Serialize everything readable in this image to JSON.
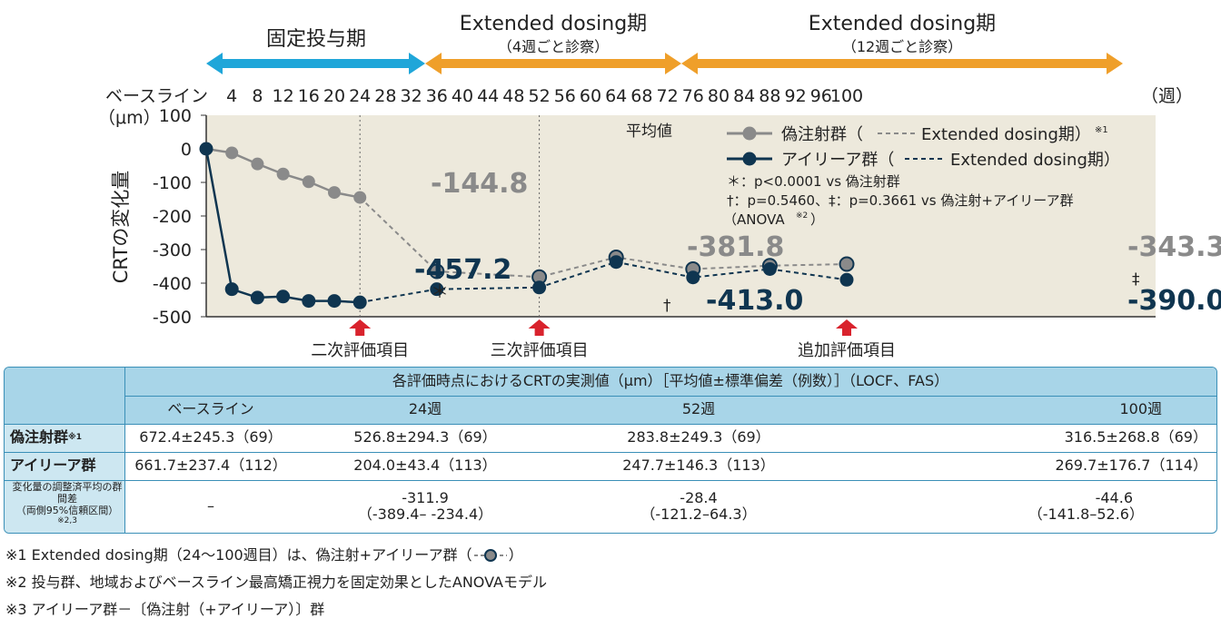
{
  "colors": {
    "sham": "#8a8a8a",
    "aflibercept": "#0f3550",
    "plot_bg": "#ede9dc",
    "phase1": "#1fa6d9",
    "phase2": "#ef9f2a",
    "marker_red": "#d9232d",
    "table_header": "#a8d5e8",
    "table_label": "#cde7f1"
  },
  "periods": [
    {
      "title": "固定投与期",
      "subtitle": ""
    },
    {
      "title": "Extended dosing期",
      "subtitle": "（4週ごと診察）"
    },
    {
      "title": "Extended dosing期",
      "subtitle": "（12週ごと診察）"
    }
  ],
  "eval_markers": [
    "二次評価項目",
    "三次評価項目",
    "追加評価項目"
  ],
  "chart_data": {
    "type": "line",
    "ylabel": "CRTの変化量",
    "yunit": "（μm）",
    "xunit": "（週）",
    "ylim": [
      -500,
      100
    ],
    "yticks": [
      "100",
      "0",
      "-100",
      "-200",
      "-300",
      "-400",
      "-500"
    ],
    "xticks": [
      "ベースライン",
      "4",
      "8",
      "12",
      "16",
      "20",
      "24",
      "28",
      "32",
      "36",
      "40",
      "44",
      "48",
      "52",
      "56",
      "60",
      "64",
      "68",
      "72",
      "76",
      "80",
      "84",
      "88",
      "92",
      "96",
      "100"
    ],
    "mean_label": "平均値",
    "series": [
      {
        "name": "偽注射群",
        "legend_suffix": "Extended dosing期",
        "legend_note": "※1",
        "x": [
          0,
          4,
          8,
          12,
          16,
          20,
          24,
          36,
          52,
          64,
          76,
          88,
          100
        ],
        "values": [
          0,
          -12,
          -45,
          -75,
          -98,
          -130,
          -144.8,
          -365,
          -381.8,
          -323,
          -358,
          -348,
          -343.3
        ]
      },
      {
        "name": "アイリーア群",
        "legend_suffix": "Extended dosing期",
        "legend_note": "",
        "x": [
          0,
          4,
          8,
          12,
          16,
          20,
          24,
          36,
          52,
          64,
          76,
          88,
          100
        ],
        "values": [
          0,
          -418,
          -443,
          -440,
          -453,
          -453,
          -457.2,
          -418,
          -413.0,
          -337,
          -383,
          -358,
          -390.0
        ]
      }
    ],
    "data_labels": {
      "sham": [
        "-144.8",
        "-381.8",
        "-343.3"
      ],
      "afl": [
        "-457.2",
        "-413.0",
        "-390.0"
      ]
    },
    "annotations": {
      "star": "＊",
      "dagger": "†",
      "ddagger": "‡",
      "note1": "＊：p<0.0001 vs 偽注射群",
      "note2": "†：p=0.5460、‡：p=0.3661 vs 偽注射+アイリーア群",
      "note3": "（ANOVA",
      "note3_sup": "※2",
      "note3_end": "）"
    }
  },
  "table": {
    "title": "各評価時点におけるCRTの実測値（μm）［平均値±標準偏差（例数）］（LOCF、FAS）",
    "columns": [
      "ベースライン",
      "24週",
      "52週",
      "100週"
    ],
    "rows": [
      {
        "label": "偽注射群",
        "sup": "※1",
        "values": [
          "672.4±245.3（69）",
          "526.8±294.3（69）",
          "283.8±249.3（69）",
          "316.5±268.8（69）"
        ]
      },
      {
        "label": "アイリーア群",
        "sup": "",
        "values": [
          "661.7±237.4（112）",
          "204.0±43.4（113）",
          "247.7±146.3（113）",
          "269.7±176.7（114）"
        ]
      }
    ],
    "diff_label1": "変化量の調整済平均の群間差",
    "diff_label2": "（両側95%信頼区間）",
    "diff_sup": "※2,3",
    "diff": [
      {
        "v": "–",
        "ci": ""
      },
      {
        "v": "-311.9",
        "ci": "（-389.4– -234.4）"
      },
      {
        "v": "-28.4",
        "ci": "（-121.2–64.3）"
      },
      {
        "v": "-44.6",
        "ci": "（-141.8–52.6）"
      }
    ]
  },
  "footnotes": [
    "※1 Extended dosing期（24～100週目）は、偽注射+アイリーア群（",
    "※2 投与群、地域およびベースライン最高矯正視力を固定効果としたANOVAモデル",
    "※3 アイリーア群－〔偽注射（+アイリーア）〕群"
  ],
  "footnote1_end": "）"
}
